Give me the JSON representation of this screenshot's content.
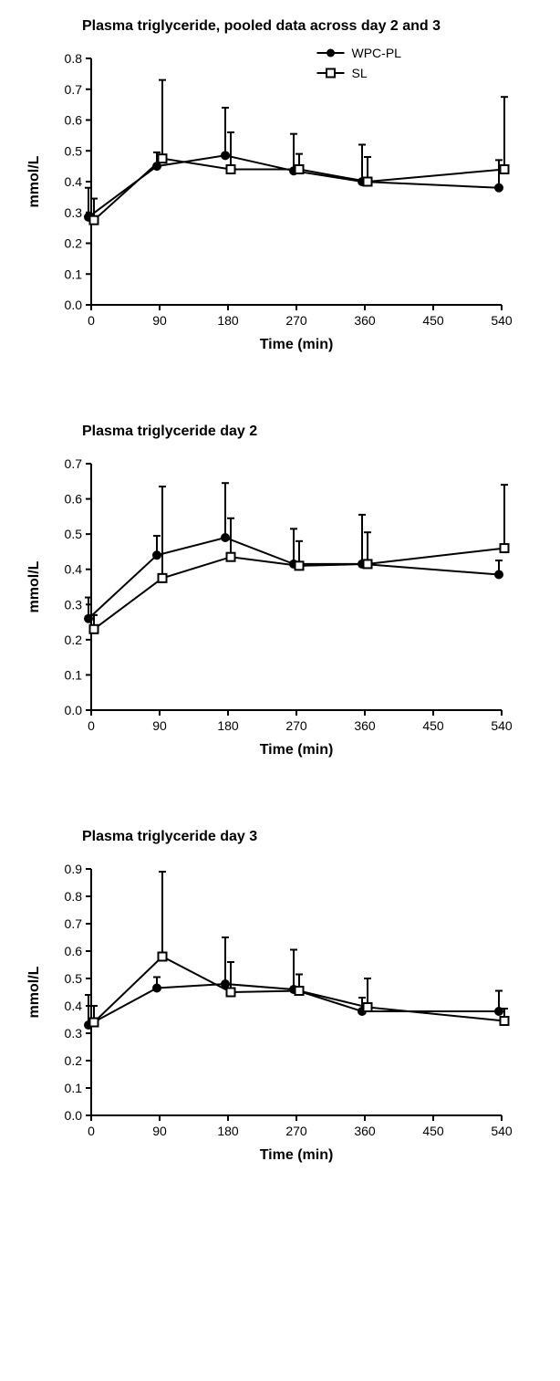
{
  "charts": [
    {
      "title": "Plasma triglyceride, pooled data across day 2 and 3",
      "ylabel": "mmol/L",
      "xlabel": "Time (min)",
      "ylim": [
        0.0,
        0.8
      ],
      "ytick_step": 0.1,
      "x_categories": [
        0,
        90,
        180,
        270,
        360,
        450,
        540
      ],
      "x_plot_indices": [
        0,
        1,
        2,
        3,
        4,
        6
      ],
      "legend": {
        "show": true,
        "items": [
          "WPC-PL",
          "SL"
        ]
      },
      "series": [
        {
          "name": "WPC-PL",
          "marker": "circle-filled",
          "color": "#000000",
          "values": [
            0.285,
            0.45,
            0.485,
            0.435,
            0.4,
            0.38
          ],
          "err_upper": [
            0.095,
            0.045,
            0.155,
            0.12,
            0.12,
            0.09
          ]
        },
        {
          "name": "SL",
          "marker": "square-open",
          "color": "#000000",
          "values": [
            0.275,
            0.475,
            0.44,
            0.44,
            0.4,
            0.44
          ],
          "err_upper": [
            0.07,
            0.255,
            0.12,
            0.05,
            0.08,
            0.235
          ]
        }
      ],
      "title_fontsize": 16,
      "label_fontsize": 16,
      "tick_fontsize": 14,
      "background_color": "#ffffff",
      "axis_color": "#000000",
      "line_width": 2,
      "marker_size": 7,
      "errorbar_cap": 8
    },
    {
      "title": "Plasma triglyceride day 2",
      "ylabel": "mmol/L",
      "xlabel": "Time (min)",
      "ylim": [
        0.0,
        0.7
      ],
      "ytick_step": 0.1,
      "x_categories": [
        0,
        90,
        180,
        270,
        360,
        450,
        540
      ],
      "x_plot_indices": [
        0,
        1,
        2,
        3,
        4,
        6
      ],
      "legend": {
        "show": false,
        "items": [
          "WPC-PL",
          "SL"
        ]
      },
      "series": [
        {
          "name": "WPC-PL",
          "marker": "circle-filled",
          "color": "#000000",
          "values": [
            0.26,
            0.44,
            0.49,
            0.415,
            0.415,
            0.385
          ],
          "err_upper": [
            0.06,
            0.055,
            0.155,
            0.1,
            0.14,
            0.04
          ]
        },
        {
          "name": "SL",
          "marker": "square-open",
          "color": "#000000",
          "values": [
            0.23,
            0.375,
            0.435,
            0.41,
            0.415,
            0.46
          ],
          "err_upper": [
            0.04,
            0.26,
            0.11,
            0.07,
            0.09,
            0.18
          ]
        }
      ],
      "title_fontsize": 16,
      "label_fontsize": 16,
      "tick_fontsize": 14,
      "background_color": "#ffffff",
      "axis_color": "#000000",
      "line_width": 2,
      "marker_size": 7,
      "errorbar_cap": 8
    },
    {
      "title": "Plasma triglyceride day 3",
      "ylabel": "mmol/L",
      "xlabel": "Time (min)",
      "ylim": [
        0.0,
        0.9
      ],
      "ytick_step": 0.1,
      "x_categories": [
        0,
        90,
        180,
        270,
        360,
        450,
        540
      ],
      "x_plot_indices": [
        0,
        1,
        2,
        3,
        4,
        6
      ],
      "legend": {
        "show": false,
        "items": [
          "WPC-PL",
          "SL"
        ]
      },
      "series": [
        {
          "name": "WPC-PL",
          "marker": "circle-filled",
          "color": "#000000",
          "values": [
            0.33,
            0.465,
            0.48,
            0.46,
            0.38,
            0.38
          ],
          "err_upper": [
            0.11,
            0.04,
            0.17,
            0.145,
            0.05,
            0.075
          ]
        },
        {
          "name": "SL",
          "marker": "square-open",
          "color": "#000000",
          "values": [
            0.34,
            0.58,
            0.45,
            0.455,
            0.395,
            0.345
          ],
          "err_upper": [
            0.06,
            0.31,
            0.11,
            0.06,
            0.105,
            0.045
          ]
        }
      ],
      "title_fontsize": 16,
      "label_fontsize": 16,
      "tick_fontsize": 14,
      "background_color": "#ffffff",
      "axis_color": "#000000",
      "line_width": 2,
      "marker_size": 7,
      "errorbar_cap": 8
    }
  ]
}
